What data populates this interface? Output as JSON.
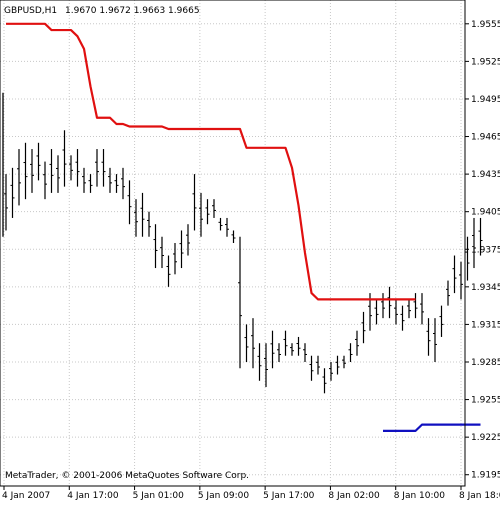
{
  "header": {
    "symbol_text": "GBPUSD,H1",
    "ohlc_text": "1.9670 1.9672 1.9663 1.9665"
  },
  "footer": {
    "copyright": "MetaTrader, © 2001-2006 MetaQuotes Software Corp."
  },
  "colors": {
    "background": "#ffffff",
    "bars": "#000000",
    "upper_line": "#e01010",
    "lower_line": "#1010c0",
    "grid": "#c8c8c8"
  },
  "chart_data": {
    "type": "ohlc-bar",
    "title": "GBPUSD,H1",
    "ylim": [
      1.9186,
      1.9574
    ],
    "grid": true,
    "y_ticks": [
      "1.9555",
      "1.9525",
      "1.9495",
      "1.9465",
      "1.9435",
      "1.9405",
      "1.9375",
      "1.9345",
      "1.9315",
      "1.9285",
      "1.9255",
      "1.9225",
      "1.9195"
    ],
    "x_tick_labels": [
      "4 Jan 2007",
      "4 Jan 17:00",
      "5 Jan 01:00",
      "5 Jan 09:00",
      "5 Jan 17:00",
      "8 Jan 02:00",
      "8 Jan 10:00",
      "8 Jan 18:00"
    ],
    "bars_hl": [
      [
        1.9435,
        1.939
      ],
      [
        1.944,
        1.94
      ],
      [
        1.9455,
        1.941
      ],
      [
        1.946,
        1.9415
      ],
      [
        1.9455,
        1.942
      ],
      [
        1.946,
        1.943
      ],
      [
        1.9445,
        1.9415
      ],
      [
        1.9455,
        1.942
      ],
      [
        1.945,
        1.942
      ],
      [
        1.947,
        1.9425
      ],
      [
        1.945,
        1.943
      ],
      [
        1.9455,
        1.9425
      ],
      [
        1.944,
        1.942
      ],
      [
        1.9435,
        1.942
      ],
      [
        1.9455,
        1.9425
      ],
      [
        1.9455,
        1.9425
      ],
      [
        1.944,
        1.942
      ],
      [
        1.9435,
        1.942
      ],
      [
        1.944,
        1.9415
      ],
      [
        1.943,
        1.9395
      ],
      [
        1.9415,
        1.9385
      ],
      [
        1.942,
        1.9385
      ],
      [
        1.9405,
        1.9385
      ],
      [
        1.9395,
        1.936
      ],
      [
        1.9385,
        1.936
      ],
      [
        1.937,
        1.9345
      ],
      [
        1.938,
        1.9355
      ],
      [
        1.939,
        1.936
      ],
      [
        1.9395,
        1.937
      ],
      [
        1.9435,
        1.939
      ],
      [
        1.942,
        1.9385
      ],
      [
        1.9415,
        1.9395
      ],
      [
        1.9415,
        1.94
      ],
      [
        1.94,
        1.939
      ],
      [
        1.94,
        1.9385
      ],
      [
        1.939,
        1.938
      ],
      [
        1.9385,
        1.928
      ],
      [
        1.9315,
        1.9285
      ],
      [
        1.932,
        1.928
      ],
      [
        1.93,
        1.927
      ],
      [
        1.93,
        1.9265
      ],
      [
        1.931,
        1.928
      ],
      [
        1.93,
        1.9285
      ],
      [
        1.931,
        1.929
      ],
      [
        1.93,
        1.929
      ],
      [
        1.9305,
        1.929
      ],
      [
        1.93,
        1.9285
      ],
      [
        1.929,
        1.927
      ],
      [
        1.929,
        1.9275
      ],
      [
        1.928,
        1.926
      ],
      [
        1.9285,
        1.927
      ],
      [
        1.929,
        1.9275
      ],
      [
        1.929,
        1.928
      ],
      [
        1.93,
        1.9285
      ],
      [
        1.931,
        1.929
      ],
      [
        1.9325,
        1.93
      ],
      [
        1.934,
        1.931
      ],
      [
        1.9335,
        1.9315
      ],
      [
        1.934,
        1.932
      ],
      [
        1.9345,
        1.932
      ],
      [
        1.9335,
        1.9315
      ],
      [
        1.933,
        1.931
      ],
      [
        1.9335,
        1.932
      ],
      [
        1.934,
        1.932
      ],
      [
        1.934,
        1.9315
      ],
      [
        1.932,
        1.929
      ],
      [
        1.932,
        1.9285
      ],
      [
        1.933,
        1.9305
      ],
      [
        1.935,
        1.933
      ],
      [
        1.937,
        1.934
      ],
      [
        1.9365,
        1.9335
      ],
      [
        1.9385,
        1.935
      ],
      [
        1.94,
        1.936
      ],
      [
        1.94,
        1.937
      ]
    ],
    "series": [
      {
        "role": "upper-line",
        "values": [
          1.9555,
          1.9555,
          1.9555,
          1.9555,
          1.9555,
          1.9555,
          1.9555,
          1.955,
          1.955,
          1.955,
          1.955,
          1.9545,
          1.9535,
          1.9505,
          1.948,
          1.948,
          1.948,
          1.9475,
          1.9475,
          1.9473,
          1.9473,
          1.9473,
          1.9473,
          1.9473,
          1.9473,
          1.9471,
          1.9471,
          1.9471,
          1.9471,
          1.9471,
          1.9471,
          1.9471,
          1.9471,
          1.9471,
          1.9471,
          1.9471,
          1.9471,
          1.9456,
          1.9456,
          1.9456,
          1.9456,
          1.9456,
          1.9456,
          1.9456,
          1.944,
          1.941,
          1.9372,
          1.934,
          1.9335,
          1.9335,
          1.9335,
          1.9335,
          1.9335,
          1.9335,
          1.9335,
          1.9335,
          1.9335,
          1.9335,
          1.9335,
          1.9335,
          1.9335,
          1.9335,
          1.9335,
          1.9335
        ]
      },
      {
        "role": "lower-line",
        "values": [
          1.923,
          1.923,
          1.923,
          1.923,
          1.923,
          1.923,
          1.9235,
          1.9235,
          1.9235,
          1.9235,
          1.9235,
          1.9235,
          1.9235,
          1.9235,
          1.9235,
          1.9235
        ]
      }
    ]
  }
}
